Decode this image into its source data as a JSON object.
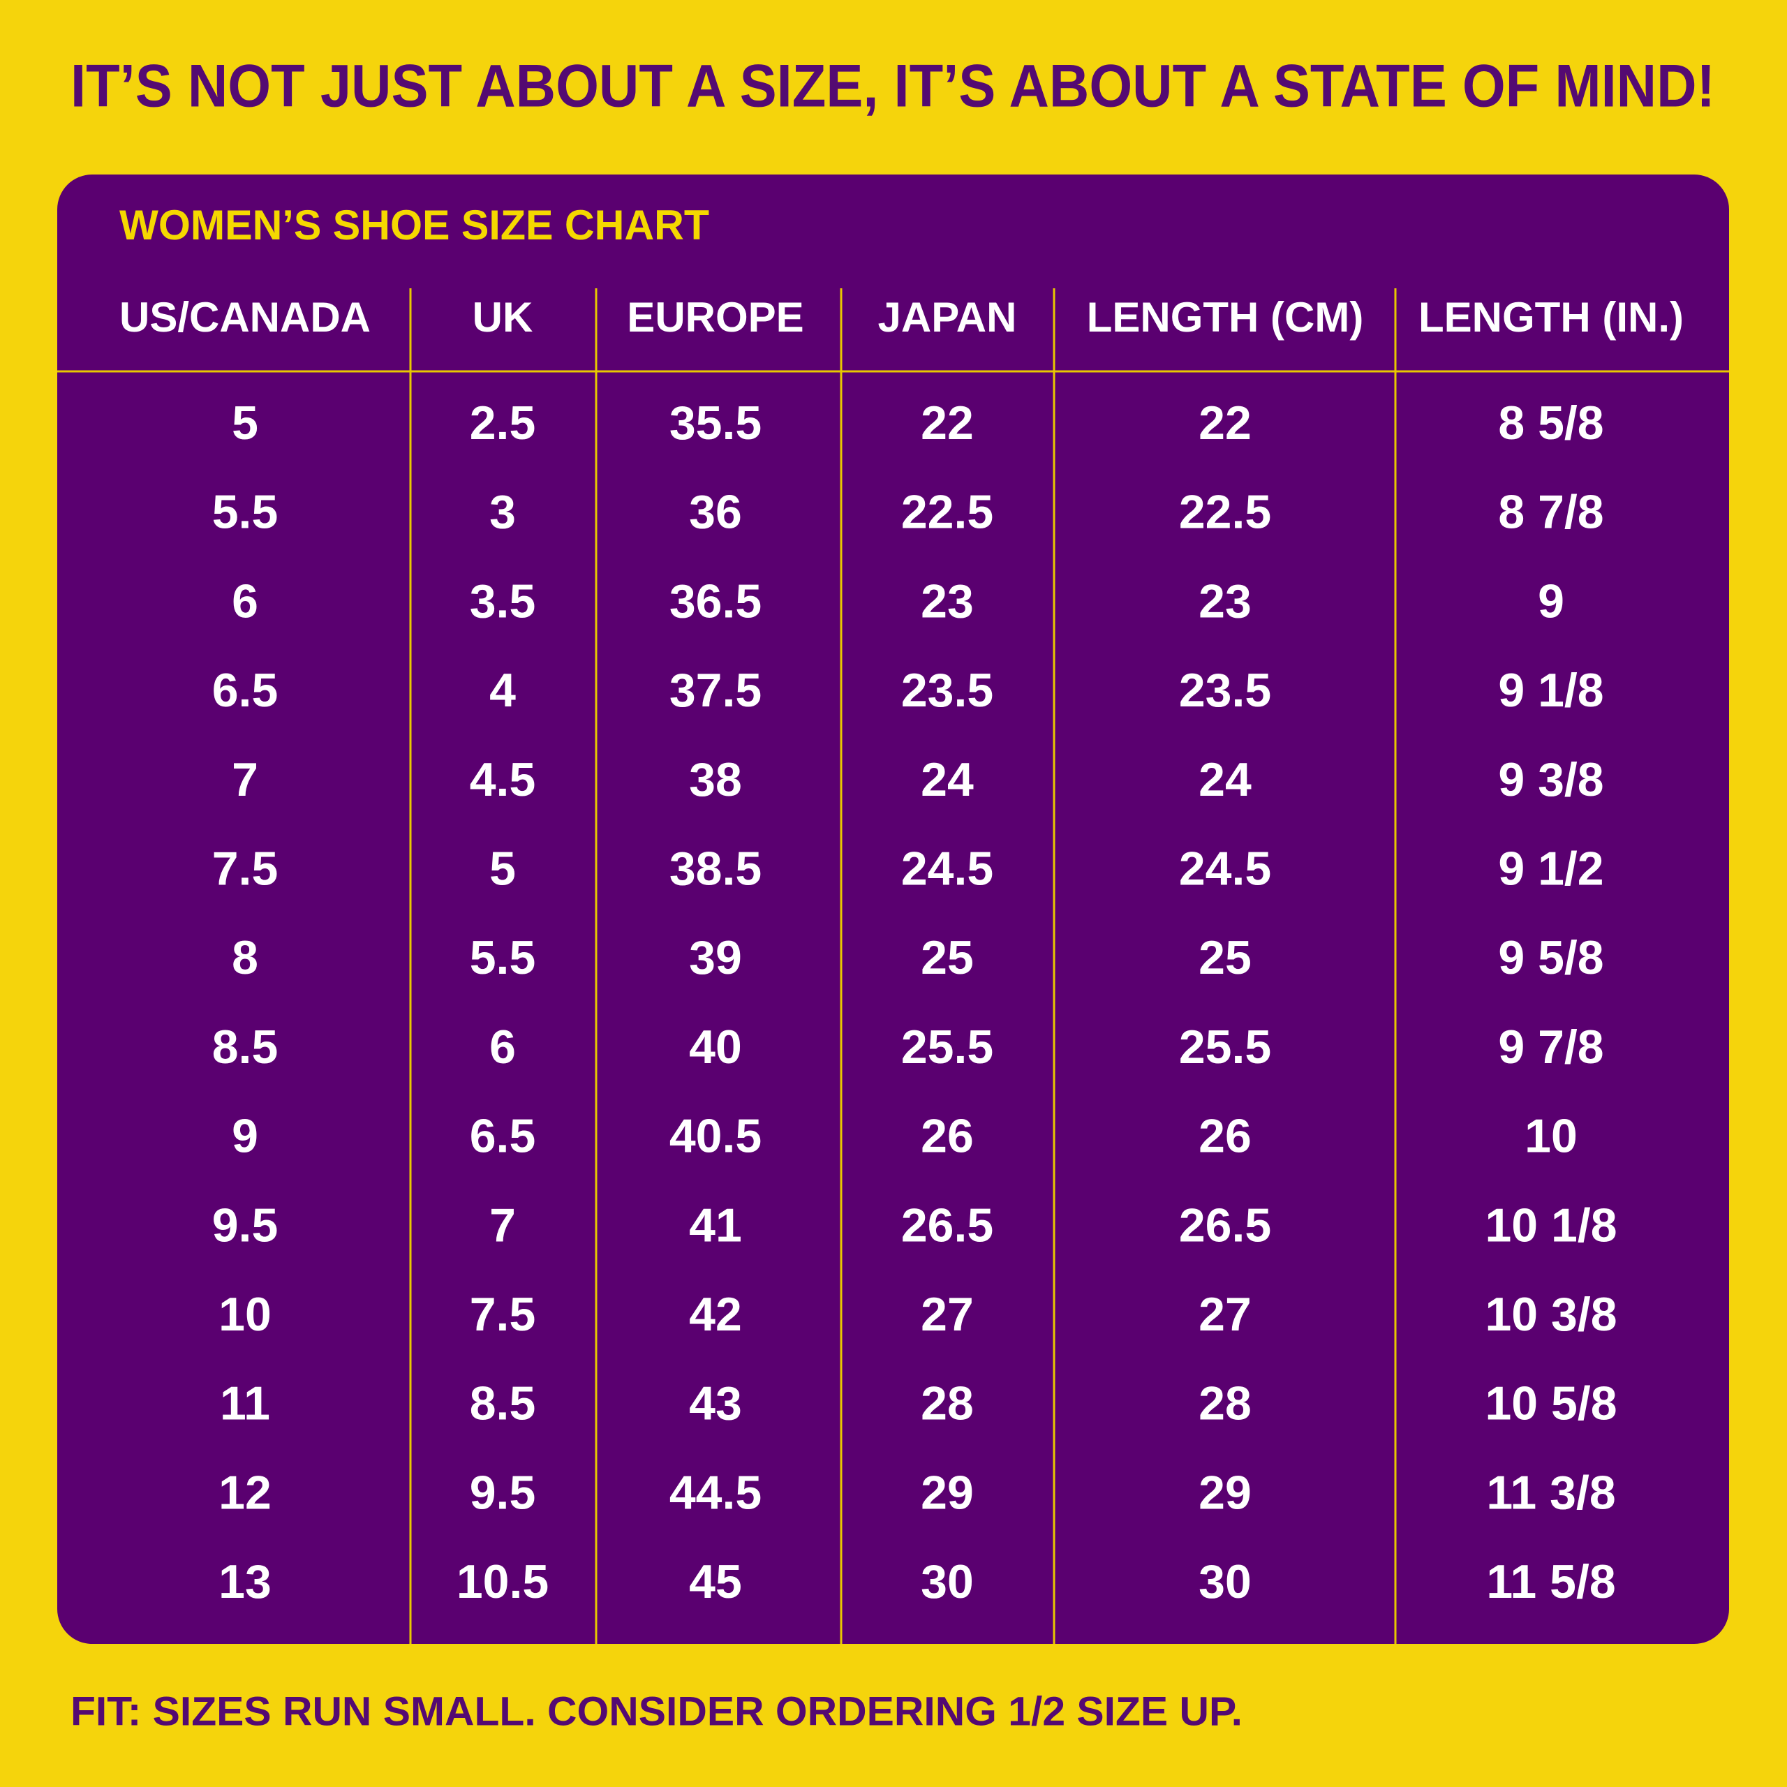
{
  "header": {
    "title": "IT’S NOT JUST ABOUT A SIZE, IT’S ABOUT A STATE OF MIND!"
  },
  "table": {
    "title": "WOMEN’S SHOE SIZE CHART",
    "columns": [
      "US/CANADA",
      "UK",
      "EUROPE",
      "JAPAN",
      "LENGTH (CM)",
      "LENGTH (IN.)"
    ],
    "rows": [
      [
        "5",
        "2.5",
        "35.5",
        "22",
        "22",
        "8 5/8"
      ],
      [
        "5.5",
        "3",
        "36",
        "22.5",
        "22.5",
        "8 7/8"
      ],
      [
        "6",
        "3.5",
        "36.5",
        "23",
        "23",
        "9"
      ],
      [
        "6.5",
        "4",
        "37.5",
        "23.5",
        "23.5",
        "9 1/8"
      ],
      [
        "7",
        "4.5",
        "38",
        "24",
        "24",
        "9 3/8"
      ],
      [
        "7.5",
        "5",
        "38.5",
        "24.5",
        "24.5",
        "9 1/2"
      ],
      [
        "8",
        "5.5",
        "39",
        "25",
        "25",
        "9 5/8"
      ],
      [
        "8.5",
        "6",
        "40",
        "25.5",
        "25.5",
        "9 7/8"
      ],
      [
        "9",
        "6.5",
        "40.5",
        "26",
        "26",
        "10"
      ],
      [
        "9.5",
        "7",
        "41",
        "26.5",
        "26.5",
        "10 1/8"
      ],
      [
        "10",
        "7.5",
        "42",
        "27",
        "27",
        "10 3/8"
      ],
      [
        "11",
        "8.5",
        "43",
        "28",
        "28",
        "10 5/8"
      ],
      [
        "12",
        "9.5",
        "44.5",
        "29",
        "29",
        "11 3/8"
      ],
      [
        "13",
        "10.5",
        "45",
        "30",
        "30",
        "11 5/8"
      ]
    ]
  },
  "footer": {
    "note": "FIT: SIZES RUN SMALL. CONSIDER ORDERING 1/2 SIZE UP."
  }
}
